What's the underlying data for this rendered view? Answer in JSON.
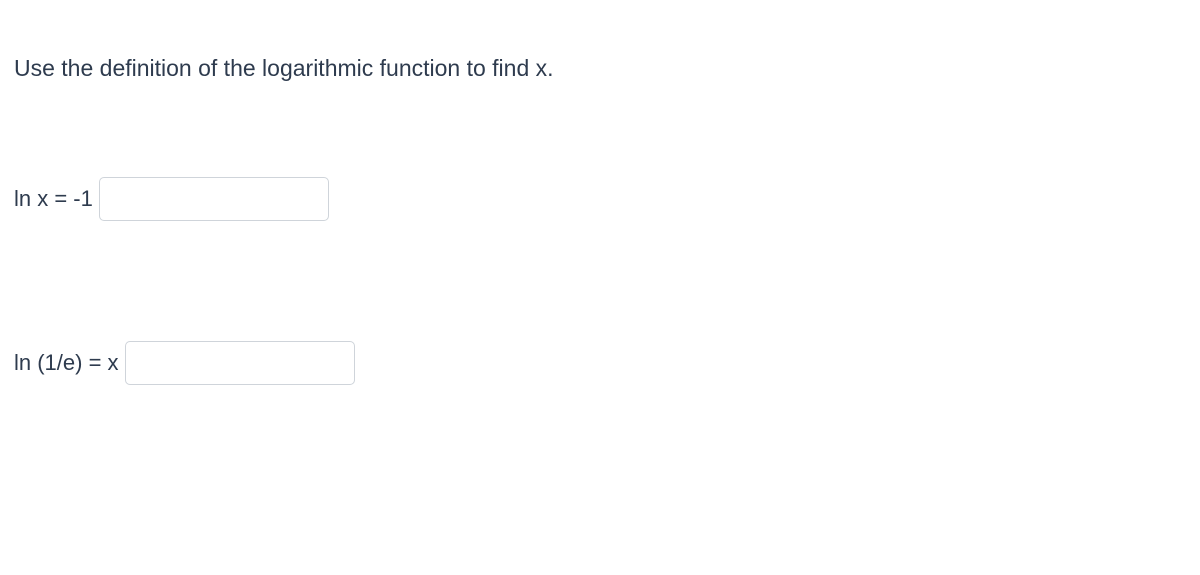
{
  "prompt": "Use the definition of the logarithmic function to find x.",
  "questions": [
    {
      "label": "ln x = -1",
      "value": ""
    },
    {
      "label": "ln (1/e) = x",
      "value": ""
    }
  ],
  "styling": {
    "text_color": "#2e3b4e",
    "background_color": "#ffffff",
    "input_border_color": "#cfd4da",
    "input_border_radius": 5,
    "prompt_fontsize": 23,
    "label_fontsize": 22,
    "input_width": 230,
    "input_height": 44
  }
}
